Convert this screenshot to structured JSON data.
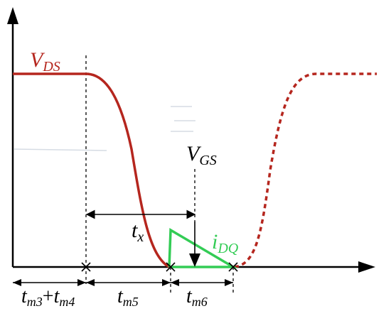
{
  "colors": {
    "vds": "#b5261e",
    "idq": "#33cc55",
    "ink": "#000000",
    "ghost": "#c4cdd8"
  },
  "labels": {
    "vds_main": "V",
    "vds_sub": "DS",
    "vgs_main": "V",
    "vgs_sub": "GS",
    "tx_main": "t",
    "tx_sub": "x",
    "idq_main": "i",
    "idq_sub": "DQ",
    "tm34_a_main": "t",
    "tm34_a_sub": "m3",
    "tm34_plus": "+",
    "tm34_b_main": "t",
    "tm34_b_sub": "m4",
    "tm5_main": "t",
    "tm5_sub": "m5",
    "tm6_main": "t",
    "tm6_sub": "m6"
  }
}
